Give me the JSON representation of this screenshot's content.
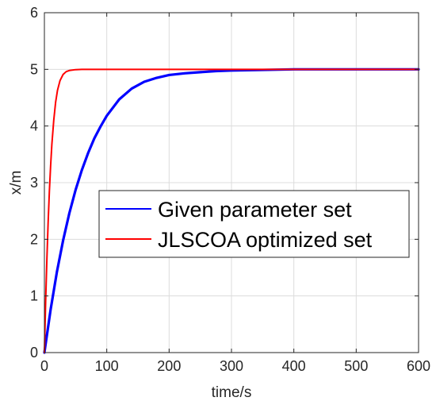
{
  "chart_data": {
    "type": "line",
    "title": "",
    "xlabel": "time/s",
    "ylabel": "x/m",
    "xlim": [
      0,
      600
    ],
    "ylim": [
      0,
      6
    ],
    "xticks": [
      0,
      100,
      200,
      300,
      400,
      500,
      600
    ],
    "yticks": [
      0,
      1,
      2,
      3,
      4,
      5,
      6
    ],
    "grid": true,
    "legend_position": "center-right",
    "series": [
      {
        "name": "Given parameter set",
        "color": "#0000ff",
        "x": [
          0,
          10,
          20,
          30,
          40,
          50,
          60,
          70,
          80,
          90,
          100,
          120,
          140,
          160,
          180,
          200,
          225,
          250,
          275,
          300,
          350,
          400,
          450,
          500,
          550,
          600
        ],
        "y": [
          0,
          0.76,
          1.42,
          1.98,
          2.46,
          2.87,
          3.22,
          3.52,
          3.78,
          3.99,
          4.18,
          4.47,
          4.66,
          4.78,
          4.85,
          4.9,
          4.93,
          4.95,
          4.97,
          4.98,
          4.99,
          5.0,
          5.0,
          5.0,
          5.0,
          5.0
        ]
      },
      {
        "name": "JLSCOA optimized set",
        "color": "#ff0000",
        "x": [
          0,
          2,
          4,
          6,
          8,
          10,
          12,
          15,
          18,
          21,
          25,
          30,
          35,
          40,
          50,
          60,
          80,
          100,
          200,
          300,
          400,
          500,
          600
        ],
        "y": [
          0,
          0.9,
          1.65,
          2.3,
          2.85,
          3.3,
          3.68,
          4.1,
          4.42,
          4.63,
          4.8,
          4.91,
          4.96,
          4.98,
          4.995,
          5.0,
          5.0,
          5.0,
          5.0,
          5.0,
          5.0,
          5.0,
          5.0
        ]
      }
    ]
  }
}
